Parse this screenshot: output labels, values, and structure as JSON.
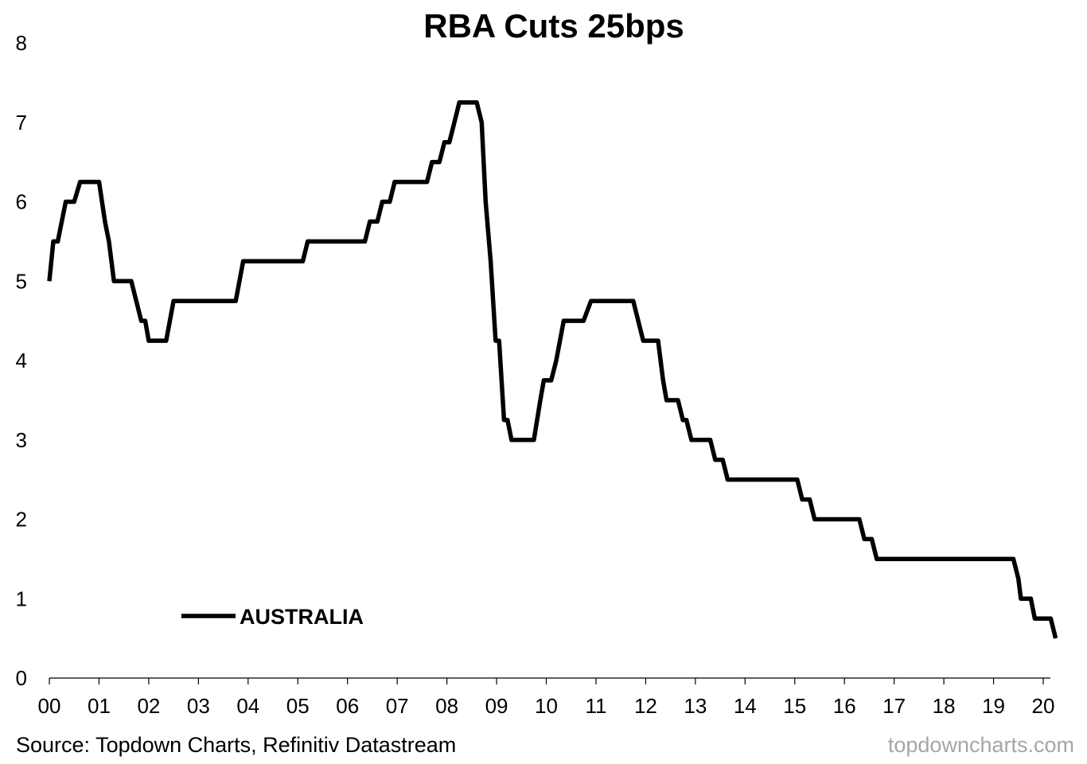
{
  "chart_data": {
    "type": "line",
    "title": "RBA Cuts 25bps",
    "xlabel": "",
    "ylabel": "",
    "ylim": [
      0,
      8
    ],
    "xlim": [
      2000.0,
      2020.25
    ],
    "yticks": [
      "0",
      "1",
      "2",
      "3",
      "4",
      "5",
      "6",
      "7",
      "8"
    ],
    "xticks": [
      "00",
      "01",
      "02",
      "03",
      "04",
      "05",
      "06",
      "07",
      "08",
      "09",
      "10",
      "11",
      "12",
      "13",
      "14",
      "15",
      "16",
      "17",
      "18",
      "19",
      "20"
    ],
    "grid": false,
    "legend_position": "bottom-left",
    "series": [
      {
        "name": "AUSTRALIA",
        "color": "#000000",
        "points": [
          [
            2000.0,
            5.0
          ],
          [
            2000.08,
            5.5
          ],
          [
            2000.17,
            5.5
          ],
          [
            2000.33,
            6.0
          ],
          [
            2000.5,
            6.0
          ],
          [
            2000.62,
            6.25
          ],
          [
            2001.0,
            6.25
          ],
          [
            2001.12,
            5.75
          ],
          [
            2001.2,
            5.5
          ],
          [
            2001.3,
            5.0
          ],
          [
            2001.65,
            5.0
          ],
          [
            2001.85,
            4.5
          ],
          [
            2001.93,
            4.5
          ],
          [
            2002.0,
            4.25
          ],
          [
            2002.35,
            4.25
          ],
          [
            2002.5,
            4.75
          ],
          [
            2003.75,
            4.75
          ],
          [
            2003.9,
            5.25
          ],
          [
            2005.1,
            5.25
          ],
          [
            2005.2,
            5.5
          ],
          [
            2006.35,
            5.5
          ],
          [
            2006.45,
            5.75
          ],
          [
            2006.6,
            5.75
          ],
          [
            2006.7,
            6.0
          ],
          [
            2006.85,
            6.0
          ],
          [
            2006.95,
            6.25
          ],
          [
            2007.6,
            6.25
          ],
          [
            2007.7,
            6.5
          ],
          [
            2007.85,
            6.5
          ],
          [
            2007.95,
            6.75
          ],
          [
            2008.05,
            6.75
          ],
          [
            2008.15,
            7.0
          ],
          [
            2008.25,
            7.25
          ],
          [
            2008.6,
            7.25
          ],
          [
            2008.7,
            7.0
          ],
          [
            2008.78,
            6.0
          ],
          [
            2008.88,
            5.25
          ],
          [
            2008.98,
            4.25
          ],
          [
            2009.05,
            4.25
          ],
          [
            2009.15,
            3.25
          ],
          [
            2009.22,
            3.25
          ],
          [
            2009.3,
            3.0
          ],
          [
            2009.75,
            3.0
          ],
          [
            2009.88,
            3.5
          ],
          [
            2009.95,
            3.75
          ],
          [
            2010.1,
            3.75
          ],
          [
            2010.2,
            4.0
          ],
          [
            2010.35,
            4.5
          ],
          [
            2010.75,
            4.5
          ],
          [
            2010.9,
            4.75
          ],
          [
            2011.75,
            4.75
          ],
          [
            2011.95,
            4.25
          ],
          [
            2012.25,
            4.25
          ],
          [
            2012.35,
            3.75
          ],
          [
            2012.42,
            3.5
          ],
          [
            2012.65,
            3.5
          ],
          [
            2012.75,
            3.25
          ],
          [
            2012.82,
            3.25
          ],
          [
            2012.92,
            3.0
          ],
          [
            2013.3,
            3.0
          ],
          [
            2013.4,
            2.75
          ],
          [
            2013.55,
            2.75
          ],
          [
            2013.65,
            2.5
          ],
          [
            2015.05,
            2.5
          ],
          [
            2015.15,
            2.25
          ],
          [
            2015.3,
            2.25
          ],
          [
            2015.4,
            2.0
          ],
          [
            2016.3,
            2.0
          ],
          [
            2016.4,
            1.75
          ],
          [
            2016.55,
            1.75
          ],
          [
            2016.65,
            1.5
          ],
          [
            2019.4,
            1.5
          ],
          [
            2019.5,
            1.25
          ],
          [
            2019.55,
            1.0
          ],
          [
            2019.75,
            1.0
          ],
          [
            2019.83,
            0.75
          ],
          [
            2020.15,
            0.75
          ],
          [
            2020.25,
            0.5
          ]
        ]
      }
    ]
  },
  "footer": {
    "source": "Source: Topdown Charts, Refinitiv Datastream",
    "watermark": "topdowncharts.com"
  }
}
